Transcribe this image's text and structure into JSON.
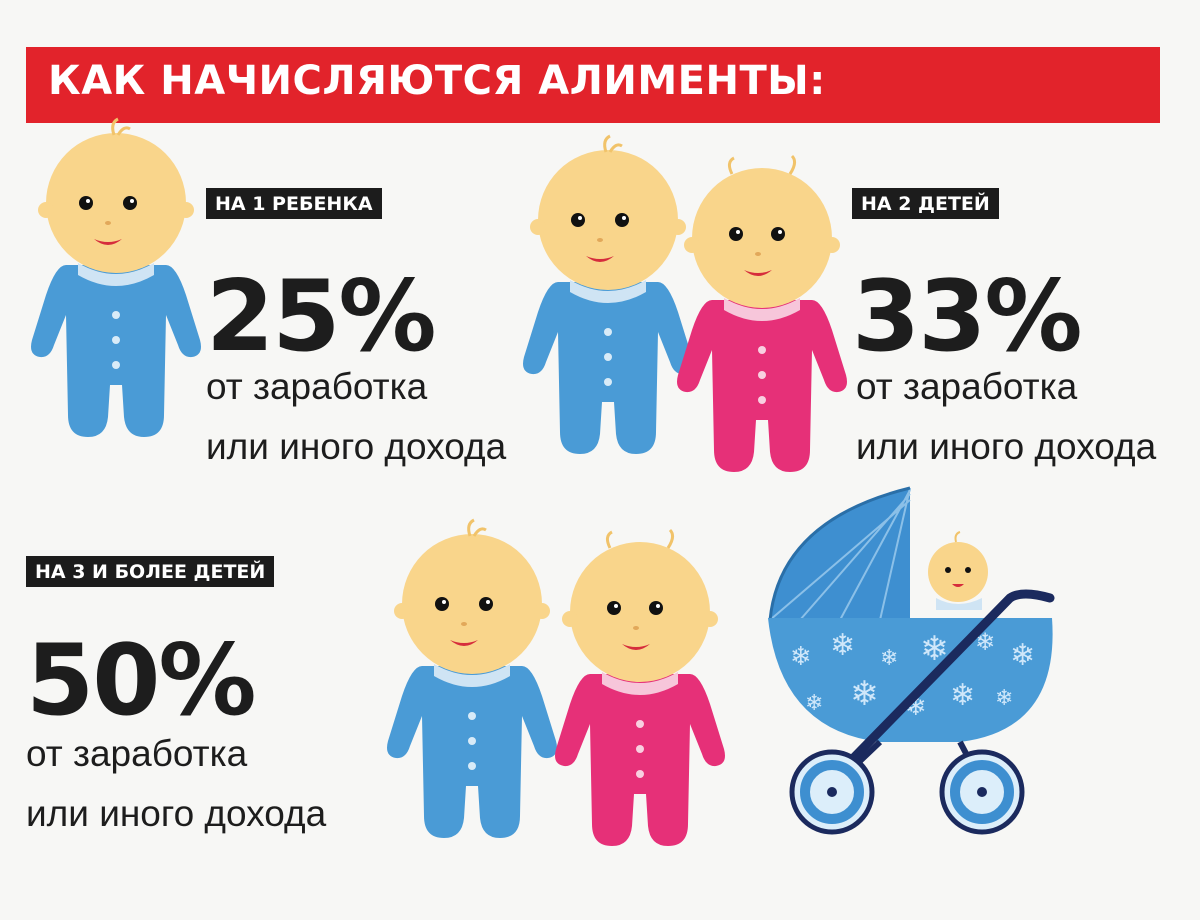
{
  "header": {
    "title": "КАК НАЧИСЛЯЮТСЯ АЛИМЕНТЫ:"
  },
  "sections": [
    {
      "tag": "НА 1 РЕБЕНКА",
      "percent": "25%",
      "line1": "от заработка",
      "line2": "или иного дохода"
    },
    {
      "tag": "НА 2 ДЕТЕЙ",
      "percent": "33%",
      "line1": "от заработка",
      "line2": "или иного дохода"
    },
    {
      "tag": "НА 3 И БОЛЕЕ ДЕТЕЙ",
      "percent": "50%",
      "line1": "от заработка",
      "line2": "или иного дохода"
    }
  ],
  "colors": {
    "banner": "#e2232b",
    "tag_bg": "#1c1c1c",
    "boy_suit": "#4a9bd6",
    "girl_suit": "#e63078",
    "skin": "#f9d58b",
    "stroller": "#3e8fd0",
    "stroller_frame": "#1b2a5e"
  },
  "icons": [
    "baby-boy-icon",
    "baby-girl-icon",
    "stroller-icon"
  ]
}
